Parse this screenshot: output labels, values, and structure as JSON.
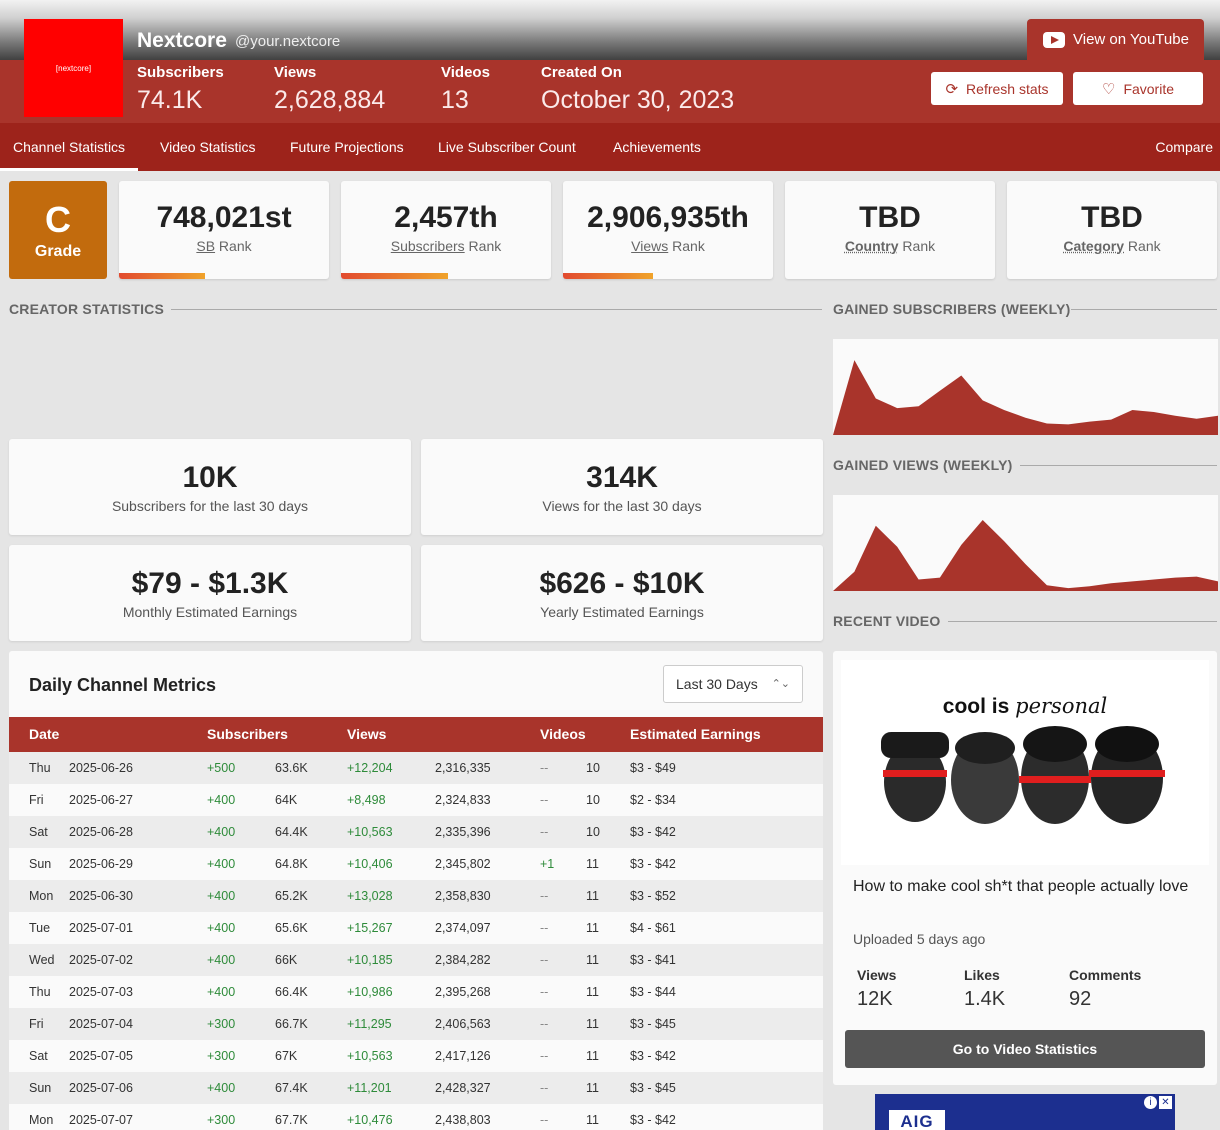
{
  "channel": {
    "logo_text": "[nextcore]",
    "name": "Nextcore",
    "handle": "@your.nextcore",
    "stats": [
      {
        "label": "Subscribers",
        "value": "74.1K"
      },
      {
        "label": "Views",
        "value": "2,628,884"
      },
      {
        "label": "Videos",
        "value": "13"
      },
      {
        "label": "Created On",
        "value": "October 30, 2023"
      }
    ],
    "youtube_button": "View on YouTube",
    "refresh_button": "Refresh stats",
    "favorite_button": "Favorite"
  },
  "nav": {
    "items": [
      "Channel Statistics",
      "Video Statistics",
      "Future Projections",
      "Live Subscriber Count",
      "Achievements"
    ],
    "compare": "Compare"
  },
  "grade": {
    "letter": "C",
    "label": "Grade",
    "color": "#c26b0d"
  },
  "ranks": [
    {
      "value": "748,021st",
      "label": "SB",
      "suffix": " Rank",
      "progress": 0.41
    },
    {
      "value": "2,457th",
      "label": "Subscribers",
      "suffix": " Rank",
      "progress": 0.51
    },
    {
      "value": "2,906,935th",
      "label": "Views",
      "suffix": " Rank",
      "progress": 0.43
    },
    {
      "value": "TBD",
      "label": "Country",
      "suffix": " Rank",
      "progress": 0
    },
    {
      "value": "TBD",
      "label": "Category",
      "suffix": " Rank",
      "progress": 0
    }
  ],
  "sections": {
    "creator": "CREATOR STATISTICS",
    "subs_weekly": "GAINED SUBSCRIBERS (WEEKLY)",
    "views_weekly": "GAINED VIEWS (WEEKLY)",
    "recent": "RECENT VIDEO"
  },
  "summary": [
    {
      "value": "10K",
      "label": "Subscribers for the last 30 days"
    },
    {
      "value": "314K",
      "label": "Views for the last 30 days"
    },
    {
      "value": "$79 - $1.3K",
      "label": "Monthly Estimated Earnings"
    },
    {
      "value": "$626 - $10K",
      "label": "Yearly Estimated Earnings"
    }
  ],
  "weekly_subs_shape": [
    0.0,
    0.78,
    0.38,
    0.28,
    0.3,
    0.46,
    0.62,
    0.36,
    0.26,
    0.18,
    0.12,
    0.11,
    0.14,
    0.16,
    0.26,
    0.24,
    0.2,
    0.17,
    0.2
  ],
  "weekly_views_shape": [
    0.0,
    0.2,
    0.68,
    0.46,
    0.12,
    0.14,
    0.48,
    0.74,
    0.52,
    0.28,
    0.06,
    0.03,
    0.05,
    0.08,
    0.1,
    0.12,
    0.14,
    0.15,
    0.1
  ],
  "accent_color": "#a9342b",
  "table": {
    "title": "Daily Channel Metrics",
    "range": "Last 30 Days",
    "headers": [
      "Date",
      "Subscribers",
      "Views",
      "Videos",
      "Estimated Earnings"
    ],
    "rows": [
      [
        "Thu",
        "2025-06-26",
        "+500",
        "63.6K",
        "+12,204",
        "2,316,335",
        "--",
        "10",
        "$3 - $49"
      ],
      [
        "Fri",
        "2025-06-27",
        "+400",
        "64K",
        "+8,498",
        "2,324,833",
        "--",
        "10",
        "$2 - $34"
      ],
      [
        "Sat",
        "2025-06-28",
        "+400",
        "64.4K",
        "+10,563",
        "2,335,396",
        "--",
        "10",
        "$3 - $42"
      ],
      [
        "Sun",
        "2025-06-29",
        "+400",
        "64.8K",
        "+10,406",
        "2,345,802",
        "+1",
        "11",
        "$3 - $42"
      ],
      [
        "Mon",
        "2025-06-30",
        "+400",
        "65.2K",
        "+13,028",
        "2,358,830",
        "--",
        "11",
        "$3 - $52"
      ],
      [
        "Tue",
        "2025-07-01",
        "+400",
        "65.6K",
        "+15,267",
        "2,374,097",
        "--",
        "11",
        "$4 - $61"
      ],
      [
        "Wed",
        "2025-07-02",
        "+400",
        "66K",
        "+10,185",
        "2,384,282",
        "--",
        "11",
        "$3 - $41"
      ],
      [
        "Thu",
        "2025-07-03",
        "+400",
        "66.4K",
        "+10,986",
        "2,395,268",
        "--",
        "11",
        "$3 - $44"
      ],
      [
        "Fri",
        "2025-07-04",
        "+300",
        "66.7K",
        "+11,295",
        "2,406,563",
        "--",
        "11",
        "$3 - $45"
      ],
      [
        "Sat",
        "2025-07-05",
        "+300",
        "67K",
        "+10,563",
        "2,417,126",
        "--",
        "11",
        "$3 - $42"
      ],
      [
        "Sun",
        "2025-07-06",
        "+400",
        "67.4K",
        "+11,201",
        "2,428,327",
        "--",
        "11",
        "$3 - $45"
      ],
      [
        "Mon",
        "2025-07-07",
        "+300",
        "67.7K",
        "+10,476",
        "2,438,803",
        "--",
        "11",
        "$3 - $42"
      ]
    ]
  },
  "recent_video": {
    "thumb_title_bold": "cool is",
    "thumb_title_italic": "personal",
    "title": "How to make cool sh*t that people actually love",
    "uploaded": "Uploaded 5 days ago",
    "stats": [
      {
        "label": "Views",
        "value": "12K"
      },
      {
        "label": "Likes",
        "value": "1.4K"
      },
      {
        "label": "Comments",
        "value": "92"
      }
    ],
    "button": "Go to Video Statistics"
  },
  "ad": {
    "logo": "AIG",
    "info": "i",
    "close": "✕"
  }
}
